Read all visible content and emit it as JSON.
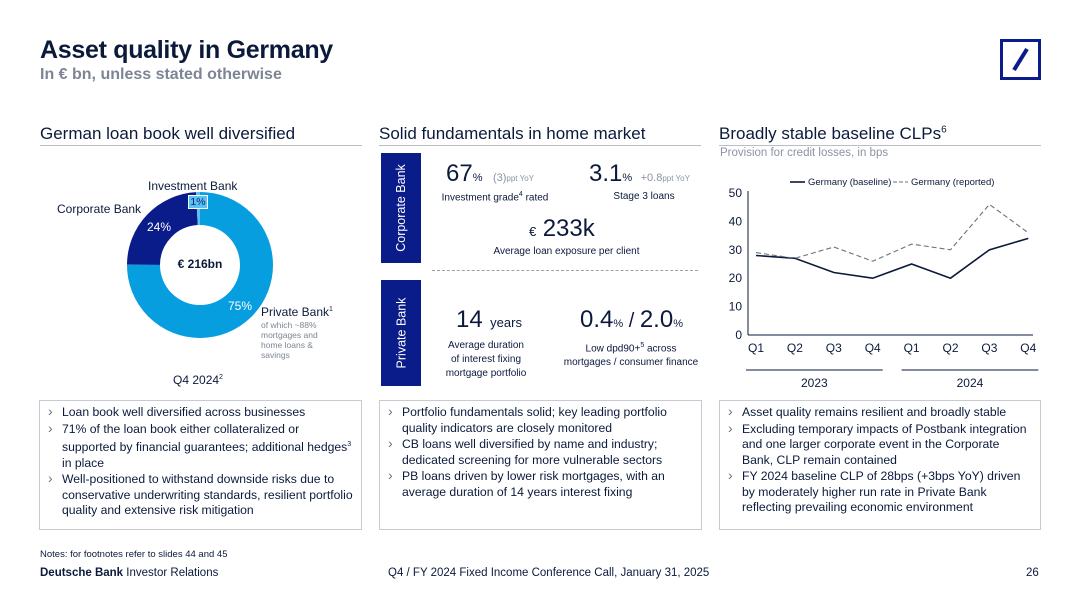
{
  "header": {
    "title": "Asset quality in Germany",
    "subtitle": "In € bn, unless stated otherwise"
  },
  "col1": {
    "heading": "German loan book well diversified",
    "donut": {
      "center_label": "€ 216bn",
      "investment_bank_label": "Investment Bank",
      "corporate_bank_label": "Corporate Bank",
      "private_bank_label": "Private Bank",
      "private_bank_sup": "1",
      "private_bank_note": [
        "of which ~88%",
        "mortgages and",
        "home loans &",
        "savings"
      ],
      "pct_ib": "1%",
      "pct_cb": "24%",
      "pct_pb": "75%",
      "date_label": "Q4 2024",
      "date_sup": "2"
    },
    "bullets": [
      "Loan book well diversified across businesses",
      "71% of the loan book either collateralized or supported by financial guarantees; additional hedges",
      "Well-positioned to withstand downside risks due to conservative underwriting standards, resilient portfolio quality and extensive risk mitigation"
    ],
    "bullet2_sup": "3",
    "bullet2_tail": " in place"
  },
  "col2": {
    "heading": "Solid fundamentals in home market",
    "corporate_bank_band": "Corporate Bank",
    "private_bank_band": "Private Bank",
    "ig_value": "67",
    "ig_unit": "%",
    "ig_delta": "(3)",
    "ig_delta_unit": "ppt YoY",
    "ig_label": "Investment grade",
    "ig_label_sup": "4",
    "ig_label_tail": " rated",
    "s3_value": "3.1",
    "s3_unit": "%",
    "s3_delta": "+0.8",
    "s3_delta_unit": "ppt YoY",
    "s3_label": "Stage 3 loans",
    "avg_prefix": "€",
    "avg_value": "233k",
    "avg_label": "Average loan exposure per client",
    "dur_value": "14",
    "dur_unit": "years",
    "dur_label": [
      "Average duration",
      "of interest fixing",
      "mortgage portfolio"
    ],
    "dpd_value1": "0.4",
    "dpd_unit1": "%",
    "dpd_sep": " / ",
    "dpd_value2": "2.0",
    "dpd_unit2": "%",
    "dpd_label1": "Low dpd90+",
    "dpd_label1_sup": "5",
    "dpd_label1_tail": " across",
    "dpd_label2": "mortgages / consumer finance",
    "bullets": [
      "Portfolio fundamentals solid; key leading portfolio quality indicators are closely monitored",
      "CB loans well diversified by name and industry; dedicated screening for more vulnerable sectors",
      "PB loans driven by lower risk mortgages, with an average duration of 14 years interest fixing"
    ]
  },
  "col3": {
    "heading": "Broadly stable baseline CLPs",
    "heading_sup": "6",
    "subheading": "Provision for credit losses, in bps",
    "bullets": [
      "Asset quality remains resilient and broadly stable",
      "Excluding temporary impacts of Postbank integration and one larger corporate event in the Corporate Bank, CLP remain contained",
      "FY 2024 baseline CLP of 28bps (+3bps YoY) driven by moderately higher run rate in Private Bank reflecting prevailing economic environment"
    ]
  },
  "chart_data": {
    "type": "line",
    "title": "Broadly stable baseline CLPs",
    "ylabel": "Provision for credit losses, in bps",
    "categories": [
      "Q1",
      "Q2",
      "Q3",
      "Q4",
      "Q1",
      "Q2",
      "Q3",
      "Q4"
    ],
    "groups": [
      "2023",
      "2024"
    ],
    "ylim": [
      0,
      50
    ],
    "yticks": [
      "0",
      "10",
      "20",
      "30",
      "40",
      "50"
    ],
    "series": [
      {
        "name": "Germany (baseline)",
        "values": [
          28,
          27,
          22,
          20,
          25,
          20,
          30,
          34
        ]
      },
      {
        "name": "Germany (reported)",
        "values": [
          29,
          27,
          31,
          26,
          32,
          30,
          46,
          36
        ]
      }
    ]
  },
  "colors": {
    "navy": "#0a1c8a",
    "light_blue": "#079ee0",
    "dark_navy": "#0b1a3b"
  },
  "footer": {
    "notes": "Notes: for footnotes refer to slides 44 and 45",
    "brand": "Deutsche Bank",
    "brand_tail": " Investor Relations",
    "event": "Q4 / FY 2024 Fixed Income Conference Call, January 31, 2025",
    "page": "26"
  }
}
